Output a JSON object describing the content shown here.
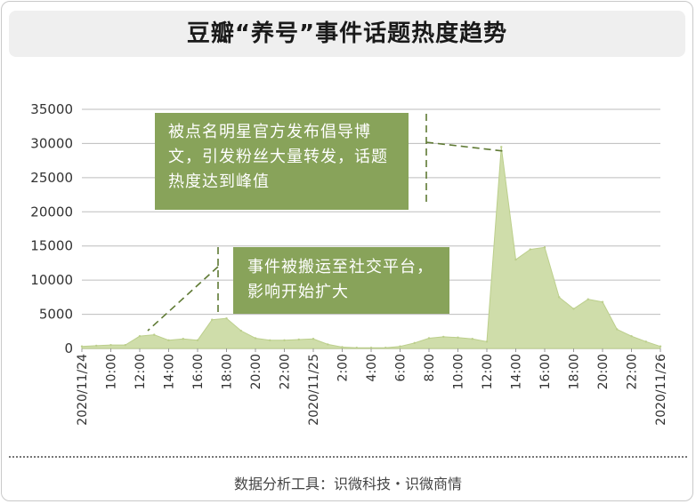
{
  "title": "豆瓣“养号”事件话题热度趋势",
  "footer": "数据分析工具：识微科技・识微商情",
  "colors": {
    "area_fill": "#cfddaa",
    "area_stroke": "#bccf8c",
    "annotation_bg": "#88a35a",
    "grid": "#bdbdbd"
  },
  "annotations": [
    {
      "id": "peak",
      "text": "被点名明星官方发布倡导博文，引发粉丝大量转发，话题热度达到峰值"
    },
    {
      "id": "move",
      "text": "事件被搬运至社交平台，影响开始扩大"
    }
  ],
  "chart_data": {
    "type": "area",
    "title": "豆瓣“养号”事件话题热度趋势",
    "xlabel": "",
    "ylabel": "",
    "ylim": [
      0,
      35000
    ],
    "y_ticks": [
      0,
      5000,
      10000,
      15000,
      20000,
      25000,
      30000,
      35000
    ],
    "grid": true,
    "x_tick_labels": [
      "2020/11/24",
      "10:00",
      "12:00",
      "14:00",
      "16:00",
      "18:00",
      "20:00",
      "22:00",
      "2020/11/25",
      "2:00",
      "4:00",
      "6:00",
      "8:00",
      "10:00",
      "12:00",
      "14:00",
      "16:00",
      "18:00",
      "20:00",
      "22:00",
      "2020/11/26"
    ],
    "x": [
      "2020/11/24 08:00",
      "09:00",
      "10:00",
      "11:00",
      "12:00",
      "13:00",
      "14:00",
      "15:00",
      "16:00",
      "17:00",
      "18:00",
      "19:00",
      "20:00",
      "21:00",
      "22:00",
      "23:00",
      "2020/11/25 00:00",
      "01:00",
      "02:00",
      "03:00",
      "04:00",
      "05:00",
      "06:00",
      "07:00",
      "08:00",
      "09:00",
      "10:00",
      "11:00",
      "12:00",
      "13:00",
      "14:00",
      "15:00",
      "16:00",
      "17:00",
      "18:00",
      "19:00",
      "20:00",
      "21:00",
      "22:00",
      "23:00",
      "2020/11/26 00:00"
    ],
    "values": [
      300,
      400,
      500,
      500,
      1800,
      2000,
      1200,
      1400,
      1200,
      4200,
      4400,
      2600,
      1500,
      1200,
      1200,
      1300,
      1400,
      600,
      200,
      100,
      100,
      100,
      300,
      800,
      1500,
      1700,
      1600,
      1400,
      1000,
      29500,
      13000,
      14500,
      14800,
      7500,
      5800,
      7200,
      6800,
      2800,
      1800,
      1000,
      300
    ]
  }
}
